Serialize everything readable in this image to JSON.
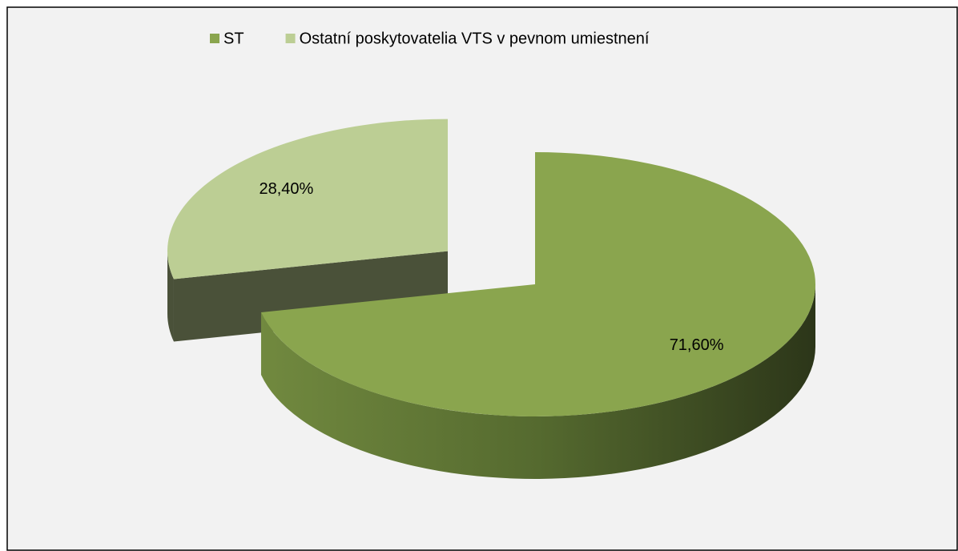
{
  "chart_data": {
    "type": "pie",
    "categories": [
      "ST",
      "Ostatní poskytovatelia VTS v pevnom umiestnení"
    ],
    "values": [
      71.6,
      28.4
    ],
    "value_labels": [
      "71,60%",
      "28,40%"
    ],
    "colors": [
      "#8aa54e",
      "#bcce94"
    ],
    "legend": "top"
  }
}
